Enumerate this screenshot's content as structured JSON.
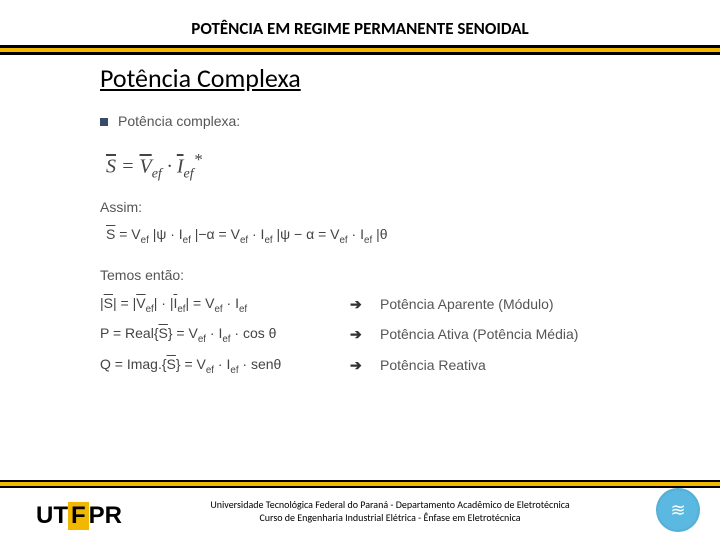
{
  "header": {
    "title": "POTÊNCIA EM REGIME PERMANENTE SENOIDAL",
    "bar_top_color": "#000000",
    "bar_accent_color": "#f2b800",
    "bar_bottom_color": "#000000"
  },
  "section": {
    "title": "Potência Complexa"
  },
  "content": {
    "bullet_label": "Potência complexa:",
    "main_equation_html": "<span class='overline'>S</span> = <span class='overline'>V</span><sub>ef</sub> · <span class='overline'>I</span><sub>ef</sub><sup>*</sup>",
    "assim_label": "Assim:",
    "line2_html": "<span class='overline'>S</span> = V<sub>ef</sub> <span class='angle'>|ψ</span> · I<sub>ef</sub> <span class='angle'>|−α</span> = V<sub>ef</sub> · I<sub>ef</sub> <span class='angle'>|ψ − α</span> = V<sub>ef</sub> · I<sub>ef</sub> <span class='angle'>|θ</span>",
    "temos_label": "Temos então:",
    "rows": [
      {
        "left_html": "|<span class='overline'>S</span>| = |<span class='overline'>V</span><sub>ef</sub>| · |<span class='overline'>I</span><sub>ef</sub>| = V<sub>ef</sub> · I<sub>ef</sub>",
        "arrow": "➔",
        "right": "Potência Aparente (Módulo)"
      },
      {
        "left_html": "P = Real{<span class='overline'>S</span>} = V<sub>ef</sub> · I<sub>ef</sub> · cos θ",
        "arrow": "➔",
        "right": "Potência Ativa (Potência Média)"
      },
      {
        "left_html": "Q = Imag.{<span class='overline'>S</span>} = V<sub>ef</sub> · I<sub>ef</sub> · senθ",
        "arrow": "➔",
        "right": "Potência Reativa"
      }
    ]
  },
  "footer": {
    "line1": "Universidade Tecnológica Federal do Paraná  -  Departamento Acadêmico de Eletrotécnica",
    "line2": "Curso de Engenharia Industrial Elétrica  -  Ênfase em Eletrotécnica",
    "logo_left": {
      "ut": "UT",
      "f": "F",
      "pr": "PR"
    },
    "logo_right_glyph": "≋"
  },
  "colors": {
    "accent_yellow": "#f2b800",
    "text_gray": "#555555",
    "eq_gray": "#444444",
    "badge_blue": "#5bb8e0"
  }
}
